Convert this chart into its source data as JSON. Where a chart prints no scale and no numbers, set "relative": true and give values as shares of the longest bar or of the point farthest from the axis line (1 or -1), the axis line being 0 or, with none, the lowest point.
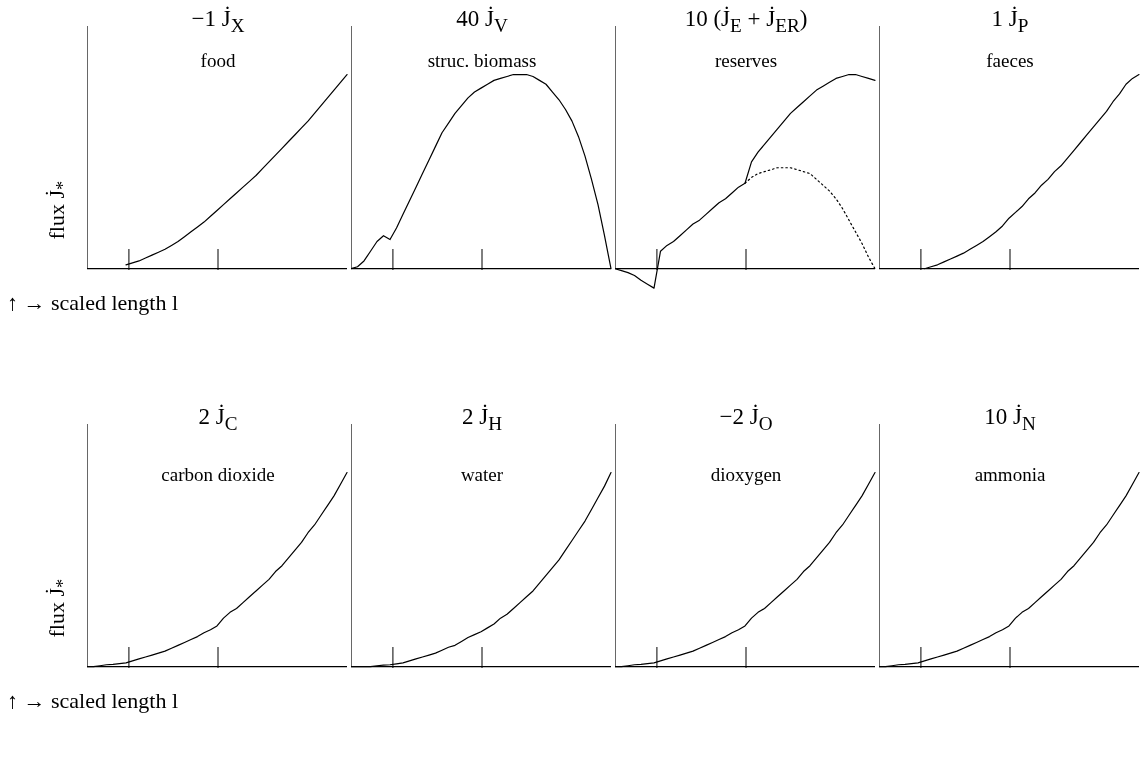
{
  "chart_data": [
    {
      "type": "line",
      "title": "−1 J̇$_{X}$",
      "subtitle": "food",
      "ylabel": "flux J̇$_{*}$",
      "xlabel": "↑ → scaled length l",
      "relative": true,
      "marker": "none",
      "categories": [
        null,
        null,
        null,
        null,
        null,
        null,
        null,
        null,
        null,
        null,
        null,
        null,
        null,
        null,
        null,
        null,
        null,
        null,
        null,
        null,
        null,
        null,
        null,
        null,
        null,
        null,
        null,
        null,
        null,
        null,
        null,
        null,
        null,
        null,
        null,
        null,
        null,
        null,
        null,
        null,
        null
      ],
      "series": [
        {
          "color": "#000000",
          "line_style": "solid",
          "values": [
            null,
            null,
            null,
            null,
            null,
            null,
            0.02,
            0.03,
            0.04,
            0.055,
            0.07,
            0.085,
            0.1,
            0.12,
            0.14,
            0.165,
            0.19,
            0.215,
            0.24,
            0.27,
            0.3,
            0.33,
            0.36,
            0.39,
            0.42,
            0.45,
            0.48,
            0.515,
            0.55,
            0.585,
            0.62,
            0.655,
            0.69,
            0.725,
            0.76,
            0.8,
            0.84,
            0.88,
            0.92,
            0.96,
            1
          ]
        }
      ]
    },
    {
      "type": "line",
      "title": "40 J̇$_{V}$",
      "subtitle": "struc. biomass",
      "relative": true,
      "marker": "none",
      "categories": [
        null,
        null,
        null,
        null,
        null,
        null,
        null,
        null,
        null,
        null,
        null,
        null,
        null,
        null,
        null,
        null,
        null,
        null,
        null,
        null,
        null,
        null,
        null,
        null,
        null,
        null,
        null,
        null,
        null,
        null,
        null,
        null,
        null,
        null,
        null,
        null,
        null,
        null,
        null,
        null,
        null
      ],
      "series": [
        {
          "color": "#000000",
          "line_style": "solid",
          "values": [
            0,
            0.01,
            0.04,
            0.09,
            0.14,
            0.17,
            0.15,
            0.21,
            0.28,
            0.35,
            0.42,
            0.49,
            0.56,
            0.63,
            0.7,
            0.75,
            0.8,
            0.84,
            0.88,
            0.91,
            0.93,
            0.95,
            0.97,
            0.98,
            0.99,
            1,
            1,
            1,
            0.99,
            0.97,
            0.95,
            0.91,
            0.87,
            0.82,
            0.76,
            0.68,
            0.58,
            0.46,
            0.33,
            0.17,
            0
          ]
        }
      ]
    },
    {
      "type": "line",
      "title": "10 (J̇$_{E}$ + J̇$_{E}$$_{R}$)",
      "subtitle": "reserves",
      "relative": true,
      "marker": "none",
      "categories": [
        null,
        null,
        null,
        null,
        null,
        null,
        null,
        null,
        null,
        null,
        null,
        null,
        null,
        null,
        null,
        null,
        null,
        null,
        null,
        null,
        null,
        null,
        null,
        null,
        null,
        null,
        null,
        null,
        null,
        null,
        null,
        null,
        null,
        null,
        null,
        null,
        null,
        null,
        null,
        null,
        null
      ],
      "series": [
        {
          "color": "#000000",
          "line_style": "solid",
          "values": [
            0,
            -0.01,
            -0.02,
            -0.035,
            -0.06,
            -0.08,
            -0.1,
            0.09,
            0.12,
            0.14,
            0.17,
            0.2,
            0.23,
            0.25,
            0.28,
            0.31,
            0.34,
            0.36,
            0.39,
            0.42,
            0.44,
            0.55,
            0.6,
            0.64,
            0.68,
            0.72,
            0.76,
            0.8,
            0.83,
            0.86,
            0.89,
            0.92,
            0.94,
            0.96,
            0.98,
            0.99,
            1,
            1,
            0.99,
            0.98,
            0.97
          ]
        },
        {
          "color": "#000000",
          "line_style": "dotted",
          "values": [
            null,
            null,
            null,
            null,
            null,
            null,
            null,
            null,
            null,
            null,
            null,
            null,
            null,
            null,
            null,
            null,
            null,
            null,
            null,
            null,
            0.44,
            0.47,
            0.49,
            0.5,
            0.51,
            0.52,
            0.52,
            0.52,
            0.51,
            0.5,
            0.49,
            0.46,
            0.43,
            0.4,
            0.36,
            0.31,
            0.25,
            0.19,
            0.13,
            0.06,
            0
          ]
        }
      ]
    },
    {
      "type": "line",
      "title": "1 J̇$_{P}$",
      "subtitle": "faeces",
      "relative": true,
      "marker": "none",
      "categories": [
        null,
        null,
        null,
        null,
        null,
        null,
        null,
        null,
        null,
        null,
        null,
        null,
        null,
        null,
        null,
        null,
        null,
        null,
        null,
        null,
        null,
        null,
        null,
        null,
        null,
        null,
        null,
        null,
        null,
        null,
        null,
        null,
        null,
        null,
        null,
        null,
        null,
        null,
        null,
        null,
        null
      ],
      "series": [
        {
          "color": "#000000",
          "line_style": "solid",
          "values": [
            null,
            null,
            null,
            null,
            null,
            null,
            null,
            0,
            0.01,
            0.02,
            0.035,
            0.05,
            0.065,
            0.08,
            0.1,
            0.12,
            0.14,
            0.165,
            0.19,
            0.22,
            0.26,
            0.29,
            0.32,
            0.36,
            0.39,
            0.43,
            0.46,
            0.5,
            0.53,
            0.57,
            0.61,
            0.65,
            0.69,
            0.73,
            0.77,
            0.81,
            0.86,
            0.9,
            0.95,
            0.98,
            1
          ]
        }
      ]
    },
    {
      "type": "line",
      "title": "2 J̇$_{C}$",
      "subtitle": "carbon dioxide",
      "ylabel": "flux J̇$_{*}$",
      "xlabel": "↑ → scaled length l",
      "relative": true,
      "marker": "none",
      "categories": [
        null,
        null,
        null,
        null,
        null,
        null,
        null,
        null,
        null,
        null,
        null,
        null,
        null,
        null,
        null,
        null,
        null,
        null,
        null,
        null,
        null,
        null,
        null,
        null,
        null,
        null,
        null,
        null,
        null,
        null,
        null,
        null,
        null,
        null,
        null,
        null,
        null,
        null,
        null,
        null,
        null
      ],
      "series": [
        {
          "color": "#000000",
          "line_style": "solid",
          "values": [
            0,
            0,
            0.005,
            0.01,
            0.012,
            0.016,
            0.02,
            0.03,
            0.04,
            0.05,
            0.06,
            0.07,
            0.08,
            0.095,
            0.11,
            0.125,
            0.14,
            0.155,
            0.175,
            0.19,
            0.21,
            0.25,
            0.28,
            0.3,
            0.33,
            0.36,
            0.39,
            0.42,
            0.45,
            0.49,
            0.52,
            0.56,
            0.6,
            0.64,
            0.69,
            0.73,
            0.78,
            0.83,
            0.88,
            0.94,
            1
          ]
        }
      ]
    },
    {
      "type": "line",
      "title": "2 J̇$_{H}$",
      "subtitle": "water",
      "relative": true,
      "marker": "none",
      "categories": [
        null,
        null,
        null,
        null,
        null,
        null,
        null,
        null,
        null,
        null,
        null,
        null,
        null,
        null,
        null,
        null,
        null,
        null,
        null,
        null,
        null,
        null,
        null,
        null,
        null,
        null,
        null,
        null,
        null,
        null,
        null,
        null,
        null,
        null,
        null,
        null,
        null,
        null,
        null,
        null,
        null
      ],
      "series": [
        {
          "color": "#000000",
          "line_style": "solid",
          "values": [
            0,
            0,
            0,
            0,
            0.005,
            0.008,
            0.01,
            0.015,
            0.02,
            0.03,
            0.04,
            0.05,
            0.06,
            0.07,
            0.085,
            0.1,
            0.11,
            0.13,
            0.15,
            0.165,
            0.18,
            0.2,
            0.22,
            0.25,
            0.27,
            0.3,
            0.33,
            0.36,
            0.39,
            0.43,
            0.47,
            0.51,
            0.55,
            0.6,
            0.65,
            0.7,
            0.75,
            0.81,
            0.87,
            0.93,
            1
          ]
        }
      ]
    },
    {
      "type": "line",
      "title": "−2 J̇$_{O}$",
      "subtitle": "dioxygen",
      "relative": true,
      "marker": "none",
      "categories": [
        null,
        null,
        null,
        null,
        null,
        null,
        null,
        null,
        null,
        null,
        null,
        null,
        null,
        null,
        null,
        null,
        null,
        null,
        null,
        null,
        null,
        null,
        null,
        null,
        null,
        null,
        null,
        null,
        null,
        null,
        null,
        null,
        null,
        null,
        null,
        null,
        null,
        null,
        null,
        null,
        null
      ],
      "series": [
        {
          "color": "#000000",
          "line_style": "solid",
          "values": [
            0,
            0,
            0.005,
            0.01,
            0.012,
            0.016,
            0.02,
            0.03,
            0.04,
            0.05,
            0.06,
            0.07,
            0.08,
            0.095,
            0.11,
            0.125,
            0.14,
            0.155,
            0.175,
            0.19,
            0.21,
            0.25,
            0.28,
            0.3,
            0.33,
            0.36,
            0.39,
            0.42,
            0.45,
            0.49,
            0.52,
            0.56,
            0.6,
            0.64,
            0.69,
            0.73,
            0.78,
            0.83,
            0.88,
            0.94,
            1
          ]
        }
      ]
    },
    {
      "type": "line",
      "title": "10 J̇$_{N}$",
      "subtitle": "ammonia",
      "relative": true,
      "marker": "none",
      "categories": [
        null,
        null,
        null,
        null,
        null,
        null,
        null,
        null,
        null,
        null,
        null,
        null,
        null,
        null,
        null,
        null,
        null,
        null,
        null,
        null,
        null,
        null,
        null,
        null,
        null,
        null,
        null,
        null,
        null,
        null,
        null,
        null,
        null,
        null,
        null,
        null,
        null,
        null,
        null,
        null,
        null
      ],
      "series": [
        {
          "color": "#000000",
          "line_style": "solid",
          "values": [
            0,
            0,
            0.005,
            0.01,
            0.012,
            0.016,
            0.02,
            0.03,
            0.04,
            0.05,
            0.06,
            0.07,
            0.08,
            0.095,
            0.11,
            0.125,
            0.14,
            0.155,
            0.175,
            0.19,
            0.21,
            0.25,
            0.28,
            0.3,
            0.33,
            0.36,
            0.39,
            0.42,
            0.45,
            0.49,
            0.52,
            0.56,
            0.6,
            0.64,
            0.69,
            0.73,
            0.78,
            0.83,
            0.88,
            0.94,
            1
          ]
        }
      ]
    }
  ]
}
